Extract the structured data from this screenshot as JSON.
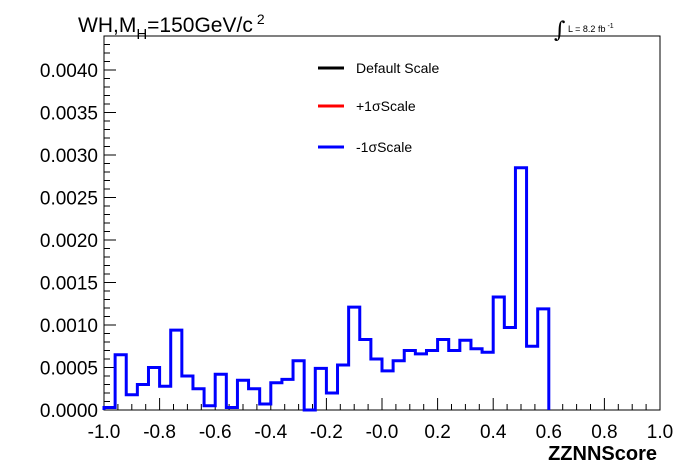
{
  "chart_data": {
    "type": "histogram",
    "title_main": "WH,M",
    "title_sub": "H",
    "title_rest": "=150GeV/c",
    "title_sup": "2",
    "lumi_label": "L = 8.2 fb",
    "lumi_sup": "-1",
    "xlabel": "ZZNNScore",
    "ylabel": "",
    "xlim": [
      -1.0,
      1.0
    ],
    "ylim": [
      0.0,
      0.0044
    ],
    "x_ticks": [
      "-1.0",
      "-0.8",
      "-0.6",
      "-0.4",
      "-0.2",
      "-0.0",
      "0.2",
      "0.4",
      "0.6",
      "0.8",
      "1.0"
    ],
    "y_ticks": [
      "0.0000",
      "0.0005",
      "0.0010",
      "0.0015",
      "0.0020",
      "0.0025",
      "0.0030",
      "0.0035",
      "0.0040"
    ],
    "bin_edges_start": -1.0,
    "bin_width": 0.04,
    "legend": [
      {
        "name": "Default Scale",
        "color": "#000000"
      },
      {
        "name": "+1σScale",
        "color": "#ff0000"
      },
      {
        "name": "-1σScale",
        "color": "#0000ff"
      }
    ],
    "series": [
      {
        "name": "-1σScale",
        "color": "#0000ff",
        "values": [
          3e-05,
          0.00065,
          0.00018,
          0.0003,
          0.0005,
          0.00028,
          0.00094,
          0.0004,
          0.00025,
          5e-05,
          0.00042,
          3e-05,
          0.00035,
          0.00025,
          7e-05,
          0.00032,
          0.00036,
          0.00058,
          0.0,
          0.00049,
          0.0002,
          0.00053,
          0.00121,
          0.00083,
          0.0006,
          0.00046,
          0.00058,
          0.0007,
          0.00066,
          0.0007,
          0.00083,
          0.0007,
          0.00082,
          0.00072,
          0.00068,
          0.00133,
          0.00097,
          0.00285,
          0.00075,
          0.00119
        ]
      }
    ]
  }
}
